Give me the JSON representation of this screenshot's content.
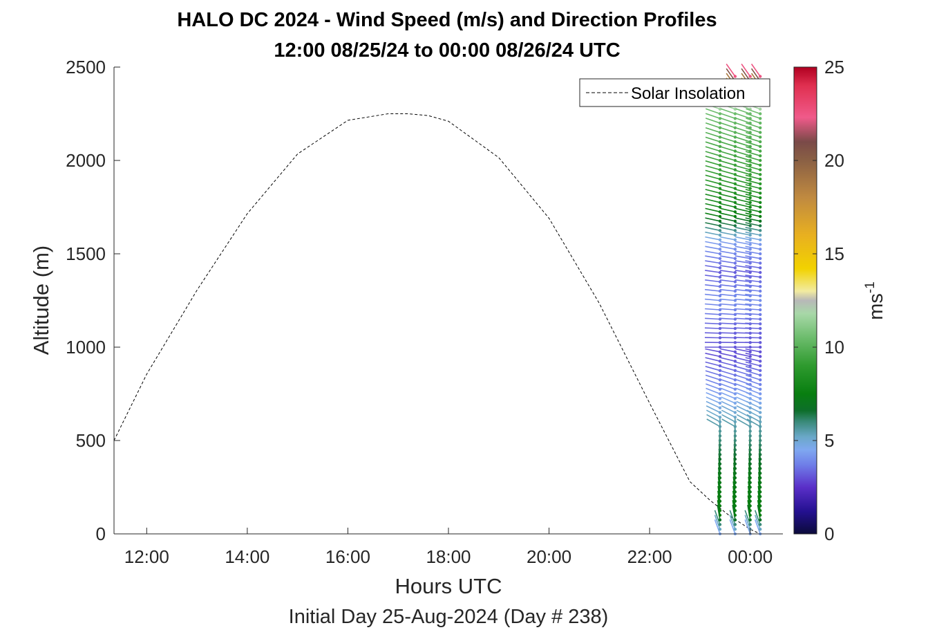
{
  "chart_data": {
    "type": "wind-barb-profile",
    "title": "HALO DC 2024 - Wind Speed (m/s) and Direction Profiles",
    "subtitle": "12:00 08/25/24 to 00:00 08/26/24  UTC",
    "xlabel": "Hours UTC",
    "xlabel2": "Initial Day 25-Aug-2024 (Day # 238)",
    "ylabel": "Altitude (m)",
    "colorbar_label": "ms",
    "colorbar_label_sup": "-1",
    "xlim": [
      11.35,
      24.65
    ],
    "ylim": [
      0,
      2500
    ],
    "x_ticks": [
      12,
      14,
      16,
      18,
      20,
      22,
      24
    ],
    "x_tick_labels": [
      "12:00",
      "14:00",
      "16:00",
      "18:00",
      "20:00",
      "22:00",
      "00:00"
    ],
    "y_ticks": [
      0,
      500,
      1000,
      1500,
      2000,
      2500
    ],
    "y_tick_labels": [
      "0",
      "500",
      "1000",
      "1500",
      "2000",
      "2500"
    ],
    "colorbar_range": [
      0,
      25
    ],
    "colorbar_ticks": [
      0,
      5,
      10,
      15,
      20,
      25
    ],
    "colorbar_tick_labels": [
      "0",
      "5",
      "10",
      "15",
      "20",
      "25"
    ],
    "colormap_stops": [
      {
        "v": 0,
        "c": "#0b0b3a"
      },
      {
        "v": 1.2,
        "c": "#241090"
      },
      {
        "v": 2.5,
        "c": "#5a2fc8"
      },
      {
        "v": 3.7,
        "c": "#6f7ee8"
      },
      {
        "v": 4.5,
        "c": "#7fa8f0"
      },
      {
        "v": 5.2,
        "c": "#6aa8c8"
      },
      {
        "v": 6.0,
        "c": "#3a8a7a"
      },
      {
        "v": 6.6,
        "c": "#0d6e2a"
      },
      {
        "v": 7.5,
        "c": "#087e10"
      },
      {
        "v": 9.0,
        "c": "#2e9a2e"
      },
      {
        "v": 10.5,
        "c": "#6cbc6c"
      },
      {
        "v": 11.8,
        "c": "#a8d8a8"
      },
      {
        "v": 12.5,
        "c": "#b8b8b8"
      },
      {
        "v": 13.0,
        "c": "#f2eba0"
      },
      {
        "v": 14.2,
        "c": "#f2d200"
      },
      {
        "v": 16.0,
        "c": "#e8b020"
      },
      {
        "v": 18.0,
        "c": "#c08a40"
      },
      {
        "v": 20.0,
        "c": "#8a6044"
      },
      {
        "v": 21.0,
        "c": "#7a4a48"
      },
      {
        "v": 22.3,
        "c": "#f05a8a"
      },
      {
        "v": 24.0,
        "c": "#e03050"
      },
      {
        "v": 25,
        "c": "#b00020"
      }
    ],
    "legend": {
      "label": "Solar Insolation",
      "placement": "top-right"
    },
    "series": [
      {
        "name": "Solar Insolation",
        "style": "dashed",
        "color": "#000000",
        "x": [
          11.35,
          12.0,
          13.0,
          14.0,
          15.0,
          16.0,
          16.8,
          17.2,
          17.6,
          18.0,
          19.0,
          20.0,
          21.0,
          22.0,
          22.8,
          23.2,
          23.6,
          24.0,
          24.2,
          24.6
        ],
        "y": [
          500,
          855,
          1305,
          1715,
          2035,
          2215,
          2250,
          2250,
          2240,
          2210,
          2015,
          1690,
          1235,
          700,
          280,
          180,
          95,
          25,
          0,
          0
        ]
      }
    ],
    "wind_profiles": [
      {
        "time": 23.4,
        "alt_max": 2300
      },
      {
        "time": 23.7,
        "alt_max": 2450
      },
      {
        "time": 24.0,
        "alt_max": 2450
      },
      {
        "time": 24.2,
        "alt_max": 2450
      }
    ],
    "wind_speed_by_altitude": [
      {
        "alt": 0,
        "speed": 4.5
      },
      {
        "alt": 100,
        "speed": 7.5
      },
      {
        "alt": 300,
        "speed": 7.2
      },
      {
        "alt": 500,
        "speed": 6.0
      },
      {
        "alt": 650,
        "speed": 5.0
      },
      {
        "alt": 800,
        "speed": 3.8
      },
      {
        "alt": 950,
        "speed": 3.0
      },
      {
        "alt": 1100,
        "speed": 3.3
      },
      {
        "alt": 1250,
        "speed": 4.0
      },
      {
        "alt": 1400,
        "speed": 3.2
      },
      {
        "alt": 1550,
        "speed": 4.2
      },
      {
        "alt": 1700,
        "speed": 7.5
      },
      {
        "alt": 1900,
        "speed": 9.0
      },
      {
        "alt": 2100,
        "speed": 9.8
      },
      {
        "alt": 2250,
        "speed": 10.5
      },
      {
        "alt": 2350,
        "speed": 15.0
      },
      {
        "alt": 2450,
        "speed": 22.5
      }
    ]
  }
}
